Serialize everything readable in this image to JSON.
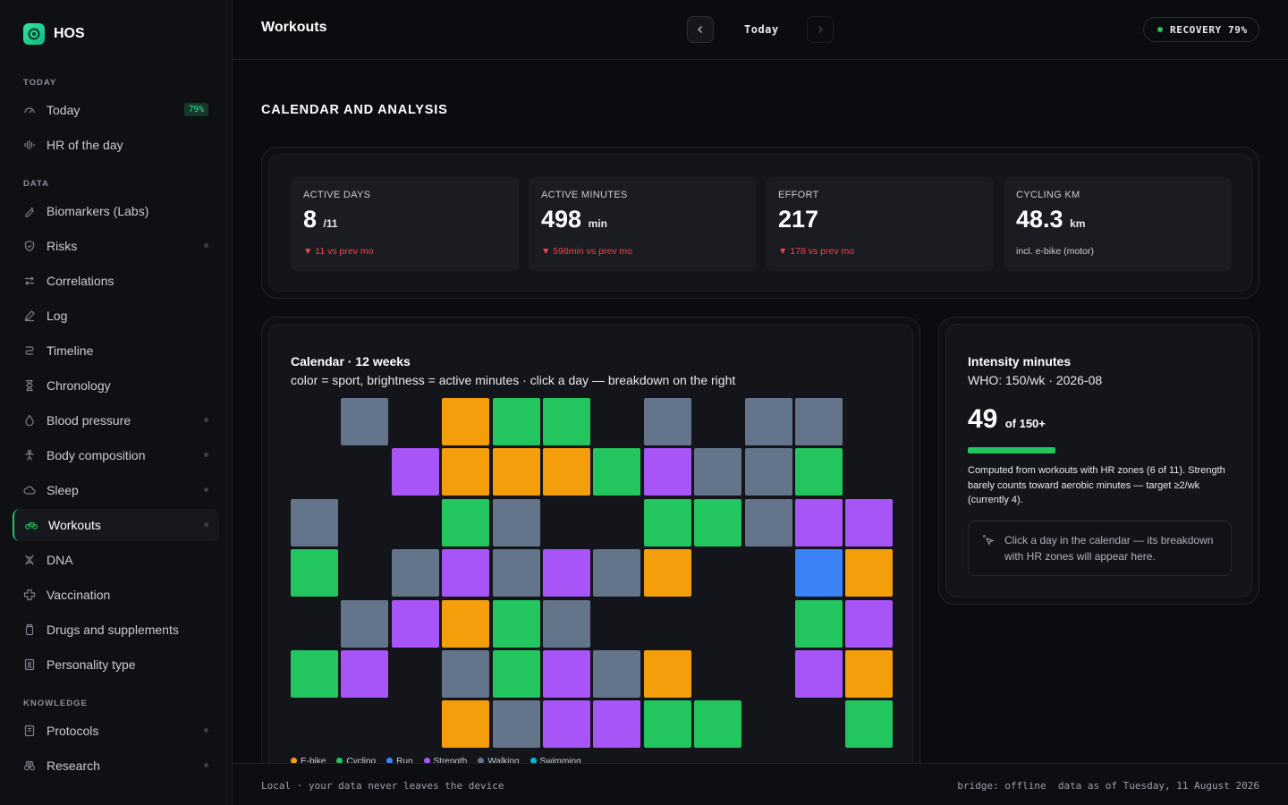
{
  "brand": {
    "name": "HOS"
  },
  "nav": {
    "sections": {
      "today": "TODAY",
      "data": "DATA",
      "knowledge": "KNOWLEDGE"
    },
    "items": [
      {
        "label": "Today",
        "icon": "gauge-icon",
        "badge": "79%"
      },
      {
        "label": "HR of the day",
        "icon": "waveform-icon"
      },
      {
        "label": "Biomarkers (Labs)",
        "icon": "pipette-icon"
      },
      {
        "label": "Risks",
        "icon": "shield-icon"
      },
      {
        "label": "Correlations",
        "icon": "arrows-swap-icon"
      },
      {
        "label": "Log",
        "icon": "pencil-icon"
      },
      {
        "label": "Timeline",
        "icon": "route-icon"
      },
      {
        "label": "Chronology",
        "icon": "hourglass-icon"
      },
      {
        "label": "Blood pressure",
        "icon": "droplet-icon"
      },
      {
        "label": "Body composition",
        "icon": "person-icon"
      },
      {
        "label": "Sleep",
        "icon": "cloud-icon"
      },
      {
        "label": "Workouts",
        "icon": "bike-icon"
      },
      {
        "label": "DNA",
        "icon": "dna-icon"
      },
      {
        "label": "Vaccination",
        "icon": "cross-icon"
      },
      {
        "label": "Drugs and supplements",
        "icon": "pill-bottle-icon"
      },
      {
        "label": "Personality type",
        "icon": "id-badge-icon"
      },
      {
        "label": "Protocols",
        "icon": "book-icon"
      },
      {
        "label": "Research",
        "icon": "binoculars-icon"
      }
    ]
  },
  "header": {
    "title": "Workouts",
    "date_label": "Today",
    "recovery": "RECOVERY 79%"
  },
  "section_title": "CALENDAR AND ANALYSIS",
  "stats": [
    {
      "label": "ACTIVE DAYS",
      "value": "8",
      "unit": "/11",
      "delta": "▼ 11 vs prev mo"
    },
    {
      "label": "ACTIVE MINUTES",
      "value": "498",
      "unit": "min",
      "delta": "▼ 598min vs prev mo"
    },
    {
      "label": "EFFORT",
      "value": "217",
      "unit": "",
      "delta": "▼ 178 vs prev mo"
    },
    {
      "label": "CYCLING KM",
      "value": "48.3",
      "unit": "km",
      "note": "incl. e-bike (motor)"
    }
  ],
  "calendar": {
    "title": "Calendar · 12 weeks",
    "subtitle": "color = sport, brightness = active minutes · click a day — breakdown on the right",
    "legend": [
      {
        "label": "E-bike",
        "color": "#f59e0b"
      },
      {
        "label": "Cycling",
        "color": "#22c55e"
      },
      {
        "label": "Run",
        "color": "#3b82f6"
      },
      {
        "label": "Strength",
        "color": "#a855f7"
      },
      {
        "label": "Walking",
        "color": "#64748b"
      },
      {
        "label": "Swimming",
        "color": "#06b6d4"
      }
    ],
    "sport_colors": {
      "E": "#f59e0b",
      "C": "#22c55e",
      "R": "#3b82f6",
      "S": "#a855f7",
      "W": "#64748b",
      "N": "#06b6d4"
    },
    "grid": [
      [
        "",
        "W",
        "",
        "E",
        "C",
        "C",
        "",
        "W",
        "",
        "W",
        "W",
        ""
      ],
      [
        "",
        "",
        "S",
        "E",
        "E",
        "E",
        "C",
        "S",
        "W",
        "W",
        "C",
        ""
      ],
      [
        "W",
        "",
        "",
        "C",
        "W",
        "",
        "",
        "C",
        "C",
        "W",
        "S",
        "S"
      ],
      [
        "C",
        "",
        "W",
        "S",
        "W",
        "S",
        "W",
        "E",
        "",
        "",
        "R",
        "E"
      ],
      [
        "",
        "W",
        "S",
        "E",
        "C",
        "W",
        "",
        "",
        "",
        "",
        "C",
        "S"
      ],
      [
        "C",
        "S",
        "",
        "W",
        "C",
        "S",
        "W",
        "E",
        "",
        "",
        "S",
        "E"
      ],
      [
        "",
        "",
        "",
        "E",
        "W",
        "S",
        "S",
        "C",
        "C",
        "",
        "",
        "C"
      ]
    ]
  },
  "intensity": {
    "title": "Intensity minutes",
    "subtitle": "WHO: 150/wk · 2026-08",
    "value": "49",
    "of": "of 150+",
    "progress": 0.33,
    "description": "Computed from workouts with HR zones (6 of 11). Strength barely counts toward aerobic minutes — target ≥2/wk (currently 4).",
    "hint": "Click a day in the calendar — its breakdown with HR zones will appear here."
  },
  "footer": {
    "left": "Local · your data never leaves the device",
    "right": "bridge: offline  data as of Tuesday, 11 August 2026"
  }
}
